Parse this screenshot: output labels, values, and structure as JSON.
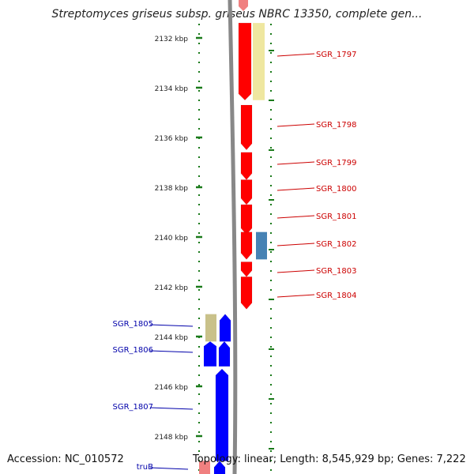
{
  "title": "Streptomyces griseus subsp. griseus NBRC 13350, complete gen...",
  "footer": {
    "accession": "Accession: NC_010572",
    "summary": "Topology: linear; Length: 8,545,929 bp; Genes: 7,222"
  },
  "colors": {
    "forward_gene": "#ff0000",
    "reverse_gene": "#0000ff",
    "forward_label": "#cc0000",
    "reverse_label": "#0000aa",
    "ruler_tick": "#1a7a1a",
    "backbone": "#888888",
    "feature_yellow": "#efe7a0",
    "feature_olive": "#c9c18a",
    "feature_steelblue": "#4682b4",
    "feature_pink": "#f08080"
  },
  "ruler": {
    "unit": "kbp",
    "ticks": [
      {
        "kbp": 2132,
        "label": "2132 kbp"
      },
      {
        "kbp": 2134,
        "label": "2134 kbp"
      },
      {
        "kbp": 2136,
        "label": "2136 kbp"
      },
      {
        "kbp": 2138,
        "label": "2138 kbp"
      },
      {
        "kbp": 2140,
        "label": "2140 kbp"
      },
      {
        "kbp": 2142,
        "label": "2142 kbp"
      },
      {
        "kbp": 2144,
        "label": "2144 kbp"
      },
      {
        "kbp": 2146,
        "label": "2146 kbp"
      },
      {
        "kbp": 2148,
        "label": "2148 kbp"
      }
    ]
  },
  "genes": [
    {
      "id": "SGR_1797",
      "label": "SGR_1797",
      "strand": "+",
      "start": 2131.4,
      "end": 2134.5,
      "track": "rna",
      "name": "gene-SGR_1797"
    },
    {
      "id": "SGR_1798",
      "label": "SGR_1798",
      "strand": "+",
      "start": 2134.7,
      "end": 2136.5,
      "track": "rna",
      "name": "gene-SGR_1798"
    },
    {
      "id": "SGR_1799",
      "label": "SGR_1799",
      "strand": "+",
      "start": 2136.6,
      "end": 2137.7,
      "track": "rna",
      "name": "gene-SGR_1799"
    },
    {
      "id": "SGR_1800",
      "label": "SGR_1800",
      "strand": "+",
      "start": 2137.7,
      "end": 2138.7,
      "track": "rna",
      "name": "gene-SGR_1800"
    },
    {
      "id": "SGR_1801",
      "label": "SGR_1801",
      "strand": "+",
      "start": 2138.7,
      "end": 2139.9,
      "track": "rna",
      "name": "gene-SGR_1801"
    },
    {
      "id": "SGR_1802",
      "label": "SGR_1802",
      "strand": "+",
      "start": 2139.8,
      "end": 2140.9,
      "track": "rna",
      "name": "gene-SGR_1802"
    },
    {
      "id": "SGR_1803",
      "label": "SGR_1803",
      "strand": "+",
      "start": 2141.0,
      "end": 2141.6,
      "track": "rna",
      "name": "gene-SGR_1803"
    },
    {
      "id": "SGR_1804",
      "label": "SGR_1804",
      "strand": "+",
      "start": 2141.6,
      "end": 2142.9,
      "track": "rna",
      "name": "gene-SGR_1804"
    },
    {
      "id": "SGR_1805",
      "label": "SGR_1805",
      "strand": "-",
      "start": 2143.1,
      "end": 2144.2,
      "track": "rna",
      "name": "gene-SGR_1805"
    },
    {
      "id": "SGR_1806",
      "label": "SGR_1806",
      "strand": "-",
      "start": 2144.2,
      "end": 2145.2,
      "track": "rna",
      "name": "gene-SGR_1806"
    },
    {
      "id": "SGR_1807",
      "label": "SGR_1807",
      "strand": "-",
      "start": 2145.3,
      "end": 2149.0,
      "track": "rna",
      "name": "gene-SGR_1807"
    },
    {
      "id": "truB",
      "label": "truB",
      "strand": "-",
      "start": 2149.0,
      "end": 2150.0,
      "track": "rna",
      "name": "gene-truB"
    }
  ],
  "features": [
    {
      "name": "feature-sgr1797-yellow",
      "strand": "+",
      "start": 2131.4,
      "end": 2134.5,
      "color": "#efe7a0"
    },
    {
      "name": "feature-sgr1802-steelblue",
      "strand": "+",
      "start": 2139.8,
      "end": 2140.9,
      "color": "#4682b4"
    },
    {
      "name": "feature-sgr1805-olive",
      "strand": "-",
      "start": 2143.1,
      "end": 2144.2,
      "color": "#c9c18a"
    },
    {
      "name": "feature-trub-pink",
      "strand": "-",
      "start": 2149.0,
      "end": 2150.0,
      "color": "#f08080"
    }
  ]
}
